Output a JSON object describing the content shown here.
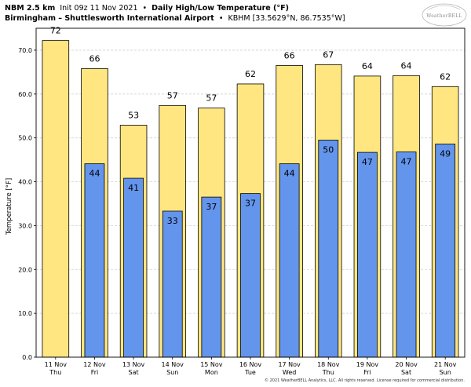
{
  "header": {
    "line1_bold": "NBM 2.5 km",
    "line1_init": "Init 09z 11 Nov 2021",
    "line1_sep": "•",
    "line1_title": "Daily High/Low Temperature (°F)",
    "line2_station": "Birmingham – Shuttlesworth International Airport",
    "line2_sep": "•",
    "line2_coords": "KBHM [33.5629°N, 86.7535°W]"
  },
  "logo": {
    "text": "WeatherBELL"
  },
  "footer": {
    "copyright": "© 2021 WeatherBELL Analytics, LLC. All rights reserved. License required for commercial distribution."
  },
  "colors": {
    "high_fill": "#ffe680",
    "low_fill": "#6495ed",
    "grid": "#d0d0d0",
    "bar_stroke": "#000000"
  },
  "chart_data": {
    "type": "bar",
    "ylabel": "Temperature [°F]",
    "ylim": [
      0,
      75
    ],
    "yticks": [
      0,
      10,
      20,
      30,
      40,
      50,
      60,
      70
    ],
    "ytick_labels": [
      "0.0",
      "10.0",
      "20.0",
      "30.0",
      "40.0",
      "50.0",
      "60.0",
      "70.0"
    ],
    "grid": true,
    "categories": [
      {
        "date": "11 Nov",
        "day": "Thu"
      },
      {
        "date": "12 Nov",
        "day": "Fri"
      },
      {
        "date": "13 Nov",
        "day": "Sat"
      },
      {
        "date": "14 Nov",
        "day": "Sun"
      },
      {
        "date": "15 Nov",
        "day": "Mon"
      },
      {
        "date": "16 Nov",
        "day": "Tue"
      },
      {
        "date": "17 Nov",
        "day": "Wed"
      },
      {
        "date": "18 Nov",
        "day": "Thu"
      },
      {
        "date": "19 Nov",
        "day": "Fri"
      },
      {
        "date": "20 Nov",
        "day": "Sat"
      },
      {
        "date": "21 Nov",
        "day": "Sun"
      }
    ],
    "highs": [
      72.2,
      65.8,
      52.9,
      57.4,
      56.8,
      62.3,
      66.5,
      66.7,
      64.1,
      64.2,
      61.7
    ],
    "high_labels": [
      "72",
      "66",
      "53",
      "57",
      "57",
      "62",
      "66",
      "67",
      "64",
      "64",
      "62"
    ],
    "lows": [
      null,
      44.1,
      40.8,
      33.3,
      36.5,
      37.3,
      44.1,
      49.5,
      46.7,
      46.8,
      48.6
    ],
    "low_labels": [
      null,
      "44",
      "41",
      "33",
      "37",
      "37",
      "44",
      "50",
      "47",
      "47",
      "49"
    ]
  }
}
